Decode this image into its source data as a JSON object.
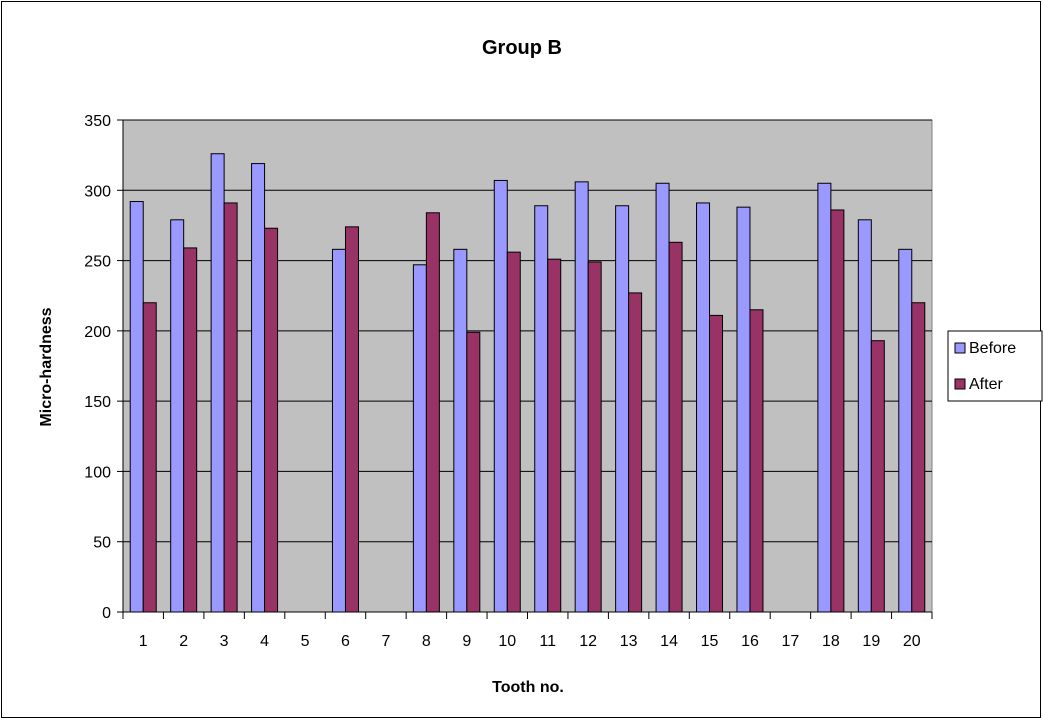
{
  "chart_data": {
    "type": "bar",
    "title": "Group B",
    "xlabel": "Tooth no.",
    "ylabel": "Micro-hardness",
    "categories": [
      "1",
      "2",
      "3",
      "4",
      "5",
      "6",
      "7",
      "8",
      "9",
      "10",
      "11",
      "12",
      "13",
      "14",
      "15",
      "16",
      "17",
      "18",
      "19",
      "20"
    ],
    "series": [
      {
        "name": "Before",
        "color": "#9999ff",
        "values": [
          292,
          279,
          326,
          319,
          null,
          258,
          null,
          247,
          258,
          307,
          289,
          306,
          289,
          305,
          291,
          288,
          null,
          305,
          279,
          258
        ]
      },
      {
        "name": "After",
        "color": "#993366",
        "values": [
          220,
          259,
          291,
          273,
          null,
          274,
          null,
          284,
          199,
          256,
          251,
          249,
          227,
          263,
          211,
          215,
          null,
          286,
          193,
          220
        ]
      }
    ],
    "ylim": [
      0,
      350
    ],
    "yticks": [
      0,
      50,
      100,
      150,
      200,
      250,
      300,
      350
    ],
    "grid": true,
    "plot_background": "#c0c0c0",
    "legend": "right"
  }
}
